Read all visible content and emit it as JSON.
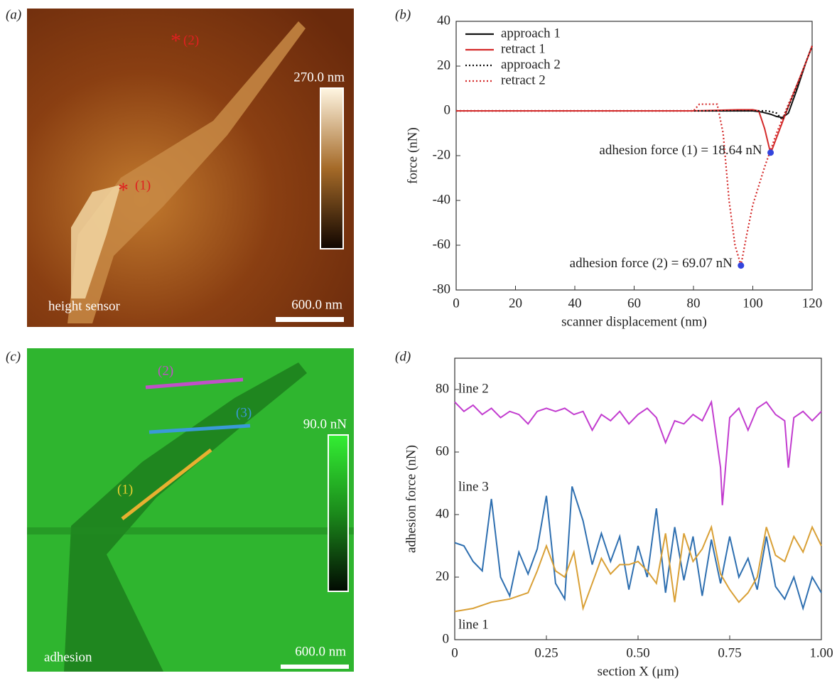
{
  "panels": {
    "a": {
      "label": "(a)",
      "marker_1": "(1)",
      "marker_2": "(2)",
      "asterisk": "*",
      "scale_top": "270.0 nm",
      "scale_bar": "600.0 nm",
      "caption": "height sensor"
    },
    "b": {
      "label": "(b)"
    },
    "c": {
      "label": "(c)",
      "line_1": "(1)",
      "line_2": "(2)",
      "line_3": "(3)",
      "scale_top": "90.0 nN",
      "scale_bar": "600.0 nm",
      "caption": "adhesion"
    },
    "d": {
      "label": "(d)"
    }
  },
  "chart_data": [
    {
      "type": "line",
      "xlabel": "scanner displacement (nm)",
      "ylabel": "force (nN)",
      "xlim": [
        0,
        120
      ],
      "ylim": [
        -80,
        40
      ],
      "xticks": [
        0,
        20,
        40,
        60,
        80,
        100,
        120
      ],
      "yticks": [
        -80,
        -60,
        -40,
        -20,
        0,
        20,
        40
      ],
      "legend": "upper left",
      "series": [
        {
          "name": "approach 1",
          "color": "#111111",
          "linestyle": "solid",
          "x": [
            0,
            20,
            40,
            60,
            80,
            95,
            100,
            103,
            106,
            108,
            110,
            112,
            115,
            118,
            120
          ],
          "values": [
            0,
            0,
            0,
            0,
            0,
            0,
            0,
            -0.5,
            -1.5,
            -2.5,
            -3,
            -1,
            10,
            22,
            29
          ]
        },
        {
          "name": "retract 1",
          "color": "#d42a2a",
          "linestyle": "solid",
          "x": [
            0,
            20,
            40,
            60,
            80,
            95,
            100,
            102,
            104,
            106,
            108,
            110,
            112,
            115,
            118,
            120
          ],
          "values": [
            0,
            0,
            0,
            0,
            0,
            0.5,
            0.5,
            0,
            -8,
            -19,
            -12,
            -5,
            2,
            12,
            22,
            29
          ]
        },
        {
          "name": "approach 2",
          "color": "#111111",
          "linestyle": "dotted",
          "x": [
            0,
            20,
            40,
            60,
            80,
            100,
            105,
            108,
            110,
            113,
            116,
            120
          ],
          "values": [
            0,
            0,
            0,
            0,
            0,
            0,
            0,
            -1,
            -4,
            5,
            15,
            29
          ]
        },
        {
          "name": "retract 2",
          "color": "#d42a2a",
          "linestyle": "dotted",
          "x": [
            0,
            20,
            40,
            60,
            80,
            82,
            85,
            88,
            90,
            92,
            94,
            96,
            98,
            100,
            104,
            108,
            112,
            116,
            120
          ],
          "values": [
            0,
            0,
            0,
            0,
            0,
            3,
            3,
            3,
            -10,
            -40,
            -60,
            -69,
            -55,
            -42,
            -25,
            -10,
            3,
            15,
            29
          ]
        }
      ],
      "points": [
        {
          "x": 106,
          "y": -18.64,
          "label": "adhesion force (1) = 18.64 nN",
          "color": "#3344dd"
        },
        {
          "x": 96,
          "y": -69.07,
          "label": "adhesion force (2) = 69.07 nN",
          "color": "#3344dd"
        }
      ]
    },
    {
      "type": "line",
      "xlabel": "section X (μm)",
      "ylabel": "adhesion force (nN)",
      "xlim": [
        0,
        1
      ],
      "ylim": [
        0,
        90
      ],
      "xticks": [
        0,
        0.25,
        {
          "value": 0.5,
          "label": "0.50"
        },
        0.75,
        {
          "value": 1,
          "label": "1.00"
        }
      ],
      "yticks": [
        0,
        20,
        40,
        60,
        80
      ],
      "series": [
        {
          "name": "line 2",
          "color": "#c23ccf",
          "linestyle": "solid",
          "x": [
            0,
            0.025,
            0.05,
            0.075,
            0.1,
            0.125,
            0.15,
            0.175,
            0.2,
            0.225,
            0.25,
            0.275,
            0.3,
            0.325,
            0.35,
            0.375,
            0.4,
            0.425,
            0.45,
            0.475,
            0.5,
            0.525,
            0.55,
            0.575,
            0.6,
            0.625,
            0.65,
            0.675,
            0.7,
            0.725,
            0.73,
            0.75,
            0.775,
            0.8,
            0.825,
            0.85,
            0.875,
            0.9,
            0.91,
            0.925,
            0.95,
            0.975,
            1
          ],
          "values": [
            76,
            73,
            75,
            72,
            74,
            71,
            73,
            72,
            69,
            73,
            74,
            73,
            74,
            72,
            73,
            67,
            72,
            70,
            73,
            69,
            72,
            74,
            71,
            63,
            70,
            69,
            72,
            70,
            76,
            55,
            43,
            71,
            74,
            67,
            74,
            76,
            72,
            70,
            55,
            71,
            73,
            70,
            73
          ]
        },
        {
          "name": "line 3",
          "color": "#2e6fb0",
          "linestyle": "solid",
          "x": [
            0,
            0.025,
            0.05,
            0.075,
            0.1,
            0.125,
            0.15,
            0.175,
            0.2,
            0.225,
            0.25,
            0.275,
            0.3,
            0.32,
            0.35,
            0.375,
            0.4,
            0.425,
            0.45,
            0.475,
            0.5,
            0.525,
            0.55,
            0.575,
            0.6,
            0.625,
            0.65,
            0.675,
            0.7,
            0.725,
            0.75,
            0.775,
            0.8,
            0.825,
            0.85,
            0.875,
            0.9,
            0.925,
            0.95,
            0.975,
            1
          ],
          "values": [
            31,
            30,
            25,
            22,
            45,
            20,
            14,
            28,
            21,
            29,
            46,
            18,
            13,
            49,
            38,
            24,
            34,
            25,
            33,
            16,
            30,
            20,
            42,
            15,
            36,
            19,
            33,
            14,
            32,
            18,
            33,
            20,
            26,
            16,
            33,
            17,
            13,
            20,
            10,
            20,
            15
          ]
        },
        {
          "name": "line 1",
          "color": "#d9a036",
          "linestyle": "solid",
          "x": [
            0,
            0.05,
            0.1,
            0.15,
            0.2,
            0.225,
            0.25,
            0.275,
            0.3,
            0.325,
            0.35,
            0.375,
            0.4,
            0.425,
            0.45,
            0.475,
            0.5,
            0.525,
            0.55,
            0.575,
            0.6,
            0.625,
            0.65,
            0.675,
            0.7,
            0.725,
            0.75,
            0.775,
            0.8,
            0.825,
            0.85,
            0.875,
            0.9,
            0.925,
            0.95,
            0.975,
            1
          ],
          "values": [
            9,
            10,
            12,
            13,
            15,
            22,
            30,
            22,
            20,
            28,
            10,
            18,
            26,
            21,
            24,
            24,
            25,
            22,
            18,
            34,
            12,
            34,
            25,
            29,
            36,
            21,
            16,
            12,
            15,
            20,
            36,
            27,
            25,
            33,
            28,
            36,
            30
          ]
        }
      ]
    }
  ]
}
